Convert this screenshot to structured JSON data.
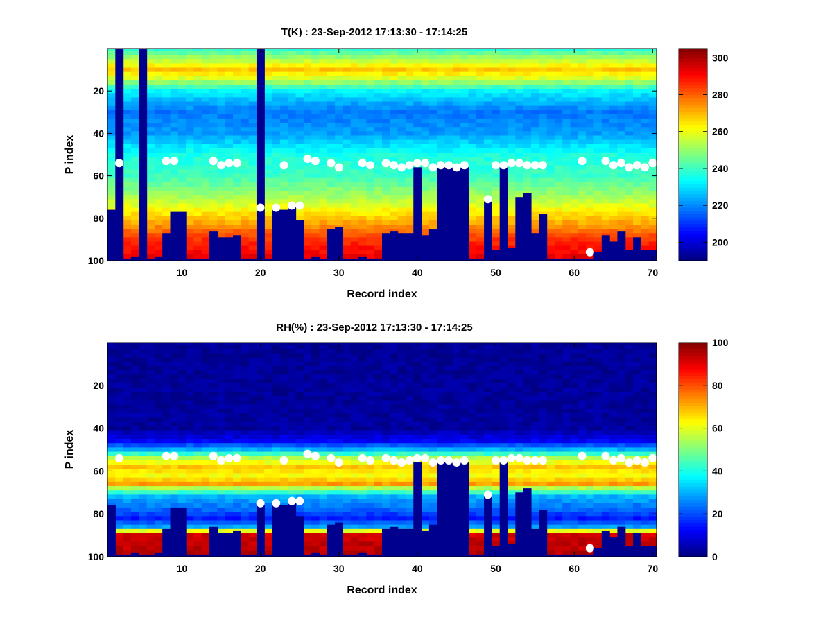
{
  "chart_data": [
    {
      "type": "heatmap",
      "title": "T(K) : 23-Sep-2012 17:13:30 - 17:14:25",
      "xlabel": "Record index",
      "ylabel": "P index",
      "xlim": [
        1,
        70
      ],
      "ylim": [
        0,
        100
      ],
      "y_reversed": true,
      "xticks": [
        10,
        20,
        30,
        40,
        50,
        60,
        70
      ],
      "yticks": [
        20,
        40,
        60,
        80,
        100
      ],
      "colormap": "jet",
      "clim": [
        190,
        305
      ],
      "colorbar_ticks": [
        200,
        220,
        240,
        260,
        280,
        300
      ],
      "mask_color": "#00008f",
      "marker_color": "#ffffff",
      "surface_p": [
        76,
        99,
        99,
        98,
        99,
        99,
        98,
        87,
        77,
        77,
        99,
        99,
        99,
        86,
        89,
        89,
        88,
        99,
        99,
        76,
        99,
        76,
        76,
        74,
        81,
        99,
        98,
        99,
        85,
        84,
        99,
        99,
        98,
        99,
        99,
        87,
        86,
        87,
        87,
        56,
        88,
        85,
        56,
        56,
        56,
        56,
        99,
        99,
        72,
        95,
        56,
        94,
        70,
        68,
        87,
        78,
        99,
        99,
        99,
        99,
        99,
        99,
        96,
        88,
        91,
        86,
        95,
        89,
        95,
        95
      ],
      "markers": [
        {
          "x": 2,
          "p": 54
        },
        {
          "x": 8,
          "p": 53
        },
        {
          "x": 9,
          "p": 53
        },
        {
          "x": 14,
          "p": 53
        },
        {
          "x": 15,
          "p": 55
        },
        {
          "x": 16,
          "p": 54
        },
        {
          "x": 17,
          "p": 54
        },
        {
          "x": 20,
          "p": 75
        },
        {
          "x": 22,
          "p": 75
        },
        {
          "x": 23,
          "p": 55
        },
        {
          "x": 24,
          "p": 74
        },
        {
          "x": 25,
          "p": 74
        },
        {
          "x": 26,
          "p": 52
        },
        {
          "x": 27,
          "p": 53
        },
        {
          "x": 29,
          "p": 54
        },
        {
          "x": 30,
          "p": 56
        },
        {
          "x": 33,
          "p": 54
        },
        {
          "x": 34,
          "p": 55
        },
        {
          "x": 36,
          "p": 54
        },
        {
          "x": 37,
          "p": 55
        },
        {
          "x": 38,
          "p": 56
        },
        {
          "x": 39,
          "p": 55
        },
        {
          "x": 40,
          "p": 54
        },
        {
          "x": 41,
          "p": 54
        },
        {
          "x": 42,
          "p": 56
        },
        {
          "x": 43,
          "p": 55
        },
        {
          "x": 44,
          "p": 55
        },
        {
          "x": 45,
          "p": 56
        },
        {
          "x": 46,
          "p": 55
        },
        {
          "x": 49,
          "p": 71
        },
        {
          "x": 50,
          "p": 55
        },
        {
          "x": 51,
          "p": 55
        },
        {
          "x": 52,
          "p": 54
        },
        {
          "x": 53,
          "p": 54
        },
        {
          "x": 54,
          "p": 55
        },
        {
          "x": 55,
          "p": 55
        },
        {
          "x": 56,
          "p": 55
        },
        {
          "x": 61,
          "p": 53
        },
        {
          "x": 62,
          "p": 96
        },
        {
          "x": 64,
          "p": 53
        },
        {
          "x": 65,
          "p": 55
        },
        {
          "x": 66,
          "p": 54
        },
        {
          "x": 67,
          "p": 56
        },
        {
          "x": 68,
          "p": 55
        },
        {
          "x": 69,
          "p": 56
        },
        {
          "x": 70,
          "p": 54
        }
      ],
      "profile": {
        "p": [
          0,
          8,
          10,
          14,
          20,
          30,
          40,
          50,
          60,
          70,
          80,
          90,
          100
        ],
        "values": [
          238,
          262,
          268,
          258,
          232,
          218,
          222,
          236,
          240,
          252,
          268,
          285,
          294
        ]
      }
    },
    {
      "type": "heatmap",
      "title": "RH(%) : 23-Sep-2012 17:13:30 - 17:14:25",
      "xlabel": "Record index",
      "ylabel": "P index",
      "xlim": [
        1,
        70
      ],
      "ylim": [
        0,
        100
      ],
      "y_reversed": true,
      "xticks": [
        10,
        20,
        30,
        40,
        50,
        60,
        70
      ],
      "yticks": [
        20,
        40,
        60,
        80,
        100
      ],
      "colormap": "jet",
      "clim": [
        0,
        100
      ],
      "colorbar_ticks": [
        0,
        20,
        40,
        60,
        80,
        100
      ],
      "mask_color": "#00008f",
      "marker_color": "#ffffff",
      "surface_p": [
        76,
        99,
        99,
        98,
        99,
        99,
        98,
        87,
        77,
        77,
        99,
        99,
        99,
        86,
        89,
        89,
        88,
        99,
        99,
        76,
        99,
        76,
        76,
        74,
        81,
        99,
        98,
        99,
        85,
        84,
        99,
        99,
        98,
        99,
        99,
        87,
        86,
        87,
        87,
        56,
        88,
        85,
        56,
        56,
        56,
        56,
        99,
        99,
        72,
        95,
        56,
        94,
        70,
        68,
        87,
        78,
        99,
        99,
        99,
        99,
        99,
        99,
        96,
        88,
        91,
        86,
        95,
        89,
        95,
        95
      ],
      "markers": [
        {
          "x": 2,
          "p": 54
        },
        {
          "x": 8,
          "p": 53
        },
        {
          "x": 9,
          "p": 53
        },
        {
          "x": 14,
          "p": 53
        },
        {
          "x": 15,
          "p": 55
        },
        {
          "x": 16,
          "p": 54
        },
        {
          "x": 17,
          "p": 54
        },
        {
          "x": 20,
          "p": 75
        },
        {
          "x": 22,
          "p": 75
        },
        {
          "x": 23,
          "p": 55
        },
        {
          "x": 24,
          "p": 74
        },
        {
          "x": 25,
          "p": 74
        },
        {
          "x": 26,
          "p": 52
        },
        {
          "x": 27,
          "p": 53
        },
        {
          "x": 29,
          "p": 54
        },
        {
          "x": 30,
          "p": 56
        },
        {
          "x": 33,
          "p": 54
        },
        {
          "x": 34,
          "p": 55
        },
        {
          "x": 36,
          "p": 54
        },
        {
          "x": 37,
          "p": 55
        },
        {
          "x": 38,
          "p": 56
        },
        {
          "x": 39,
          "p": 55
        },
        {
          "x": 40,
          "p": 54
        },
        {
          "x": 41,
          "p": 54
        },
        {
          "x": 42,
          "p": 56
        },
        {
          "x": 43,
          "p": 55
        },
        {
          "x": 44,
          "p": 55
        },
        {
          "x": 45,
          "p": 56
        },
        {
          "x": 46,
          "p": 55
        },
        {
          "x": 49,
          "p": 71
        },
        {
          "x": 50,
          "p": 55
        },
        {
          "x": 51,
          "p": 55
        },
        {
          "x": 52,
          "p": 54
        },
        {
          "x": 53,
          "p": 54
        },
        {
          "x": 54,
          "p": 55
        },
        {
          "x": 55,
          "p": 55
        },
        {
          "x": 56,
          "p": 55
        },
        {
          "x": 61,
          "p": 53
        },
        {
          "x": 62,
          "p": 96
        },
        {
          "x": 64,
          "p": 53
        },
        {
          "x": 65,
          "p": 55
        },
        {
          "x": 66,
          "p": 54
        },
        {
          "x": 67,
          "p": 56
        },
        {
          "x": 68,
          "p": 55
        },
        {
          "x": 69,
          "p": 56
        },
        {
          "x": 70,
          "p": 54
        }
      ],
      "profile": {
        "p": [
          0,
          40,
          46,
          50,
          54,
          58,
          62,
          66,
          68,
          72,
          78,
          82,
          86,
          90,
          100
        ],
        "values": [
          2,
          3,
          12,
          30,
          55,
          68,
          62,
          72,
          55,
          30,
          22,
          15,
          28,
          92,
          95
        ]
      }
    }
  ]
}
